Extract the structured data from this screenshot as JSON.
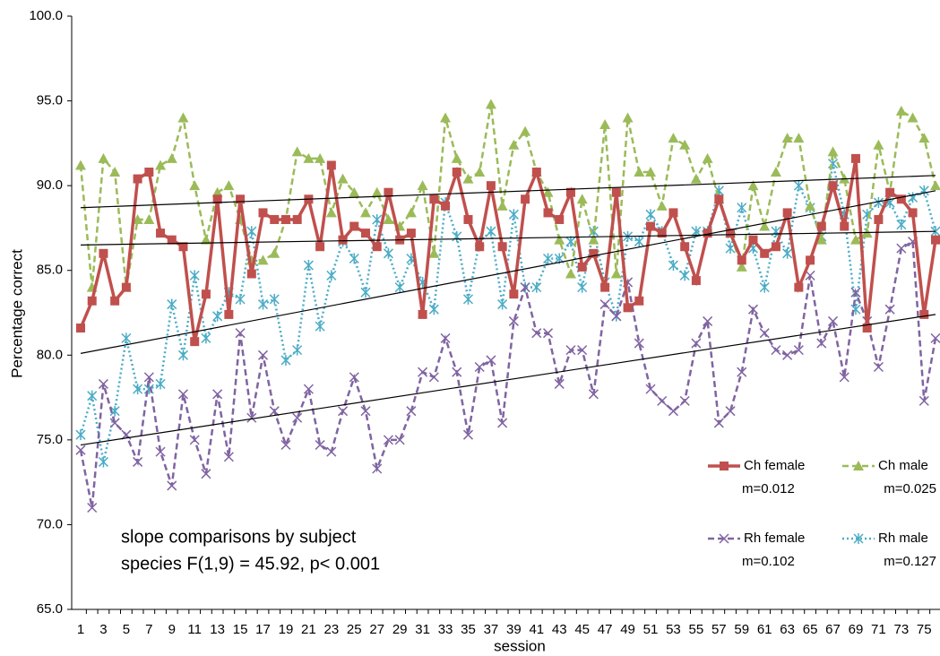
{
  "chart_data": {
    "type": "line",
    "y_label": "Percentage correct",
    "x_label": "session",
    "annotation": [
      "slope comparisons by subject",
      "species F(1,9) = 45.92, p< 0.001"
    ],
    "categories": [
      1,
      null,
      3,
      null,
      5,
      null,
      7,
      null,
      9,
      null,
      11,
      null,
      13,
      null,
      15,
      null,
      17,
      null,
      19,
      null,
      21,
      null,
      23,
      null,
      25,
      null,
      27,
      null,
      29,
      null,
      31,
      null,
      33,
      null,
      35,
      null,
      37,
      null,
      39,
      null,
      41,
      null,
      43,
      null,
      45,
      null,
      47,
      null,
      49,
      null,
      51,
      null,
      53,
      null,
      55,
      null,
      57,
      null,
      59,
      null,
      61,
      null,
      63,
      null,
      65,
      null,
      67,
      null,
      69,
      null,
      71,
      null,
      73,
      null,
      75,
      null
    ],
    "ylim": [
      65,
      100
    ],
    "yticks": [
      {
        "value": 65,
        "label": "65.0"
      },
      {
        "value": 70,
        "label": "70.0"
      },
      {
        "value": 75,
        "label": "75.0"
      },
      {
        "value": 80,
        "label": "80.0"
      },
      {
        "value": 85,
        "label": "85.0"
      },
      {
        "value": 90,
        "label": "90.0"
      },
      {
        "value": 95,
        "label": "95.0"
      },
      {
        "value": 100,
        "label": "100.0"
      }
    ],
    "grid": false,
    "legend": "bottom-right",
    "series": [
      {
        "name": "Ch female",
        "color": "#c0504d",
        "marker": "square",
        "dash": "solid",
        "slope_label": "m=0.012",
        "trend": [
          86.5,
          87.3
        ],
        "values": [
          81.6,
          83.2,
          86.0,
          83.2,
          84.0,
          90.4,
          90.8,
          87.2,
          86.8,
          86.4,
          80.8,
          83.6,
          89.2,
          82.4,
          89.2,
          84.8,
          88.4,
          88.0,
          88.0,
          88.0,
          89.2,
          86.4,
          91.2,
          86.8,
          87.6,
          87.2,
          86.4,
          89.6,
          86.8,
          87.2,
          82.4,
          89.2,
          88.8,
          90.8,
          88.0,
          86.4,
          90.0,
          86.4,
          83.6,
          89.2,
          90.8,
          88.4,
          88.0,
          89.6,
          85.2,
          86.0,
          84.0,
          89.6,
          82.8,
          83.2,
          87.6,
          87.2,
          88.4,
          86.4,
          84.4,
          87.2,
          89.2,
          87.2,
          85.6,
          86.8,
          86.0,
          86.4,
          88.4,
          84.0,
          85.6,
          87.6,
          90.0,
          87.6,
          91.6,
          81.6,
          88.0,
          89.6,
          89.2,
          88.4,
          82.4,
          86.8
        ]
      },
      {
        "name": "Ch male",
        "color": "#9bbb59",
        "marker": "triangle",
        "dash": "dashed",
        "slope_label": "m=0.025",
        "trend": [
          88.7,
          90.6
        ],
        "values": [
          91.2,
          84.0,
          91.6,
          90.8,
          84.0,
          88.0,
          88.0,
          91.2,
          91.6,
          94.0,
          90.0,
          86.8,
          89.6,
          90.0,
          88.0,
          85.6,
          85.6,
          86.0,
          88.0,
          92.0,
          91.6,
          91.6,
          88.4,
          90.4,
          89.6,
          88.4,
          89.6,
          88.0,
          87.6,
          88.4,
          90.0,
          86.0,
          94.0,
          91.6,
          90.4,
          90.8,
          94.8,
          88.8,
          92.4,
          93.2,
          90.8,
          89.6,
          86.8,
          84.8,
          89.2,
          86.8,
          93.6,
          84.8,
          94.0,
          90.8,
          90.8,
          88.8,
          92.8,
          92.4,
          90.4,
          91.6,
          89.2,
          87.2,
          85.2,
          90.0,
          87.6,
          90.8,
          92.8,
          92.8,
          88.8,
          86.8,
          92.0,
          90.4,
          86.8,
          87.2,
          92.4,
          89.6,
          94.4,
          94.0,
          92.8,
          90.0
        ]
      },
      {
        "name": "Rh female",
        "color": "#8064a2",
        "marker": "x",
        "dash": "dashed",
        "slope_label": "m=0.102",
        "trend": [
          74.7,
          82.4
        ],
        "values": [
          74.4,
          71.0,
          78.3,
          76.0,
          75.3,
          73.7,
          78.7,
          74.3,
          72.3,
          77.7,
          75.0,
          73.0,
          77.7,
          74.0,
          81.3,
          76.3,
          80.0,
          76.7,
          74.7,
          76.3,
          78.0,
          74.7,
          74.3,
          76.7,
          78.7,
          76.7,
          73.3,
          75.0,
          75.0,
          76.7,
          79.0,
          78.7,
          81.0,
          79.0,
          75.3,
          79.3,
          79.7,
          76.0,
          82.0,
          84.0,
          81.3,
          81.3,
          78.3,
          80.3,
          80.3,
          77.7,
          83.0,
          82.3,
          84.3,
          80.7,
          78.0,
          77.3,
          76.7,
          77.3,
          80.7,
          82.0,
          76.0,
          76.7,
          79.0,
          82.7,
          81.3,
          80.3,
          80.0,
          80.3,
          84.7,
          80.7,
          82.0,
          78.7,
          83.7,
          82.0,
          79.3,
          82.7,
          86.3,
          86.7,
          77.3,
          81.0
        ]
      },
      {
        "name": "Rh male",
        "color": "#4bacc6",
        "marker": "asterisk",
        "dash": "dotted",
        "slope_label": "m=0.127",
        "trend": [
          80.1,
          89.7
        ],
        "values": [
          75.3,
          77.6,
          73.7,
          76.7,
          81.0,
          78.0,
          78.0,
          78.3,
          83.0,
          80.0,
          84.7,
          81.0,
          82.3,
          83.7,
          83.3,
          87.3,
          83.0,
          83.3,
          79.7,
          80.3,
          85.3,
          81.7,
          84.7,
          86.7,
          85.7,
          83.7,
          88.0,
          86.0,
          84.0,
          85.7,
          84.3,
          82.7,
          89.0,
          87.0,
          83.3,
          86.7,
          87.3,
          83.0,
          88.3,
          84.0,
          84.0,
          85.7,
          85.7,
          86.7,
          84.0,
          87.3,
          84.3,
          82.3,
          87.0,
          86.7,
          88.3,
          87.3,
          85.3,
          84.7,
          87.3,
          87.3,
          89.7,
          86.3,
          88.7,
          86.3,
          84.0,
          87.3,
          86.0,
          90.0,
          88.7,
          87.0,
          91.3,
          88.3,
          82.7,
          88.3,
          89.0,
          89.0,
          87.7,
          89.3,
          89.7,
          87.3
        ]
      }
    ]
  }
}
